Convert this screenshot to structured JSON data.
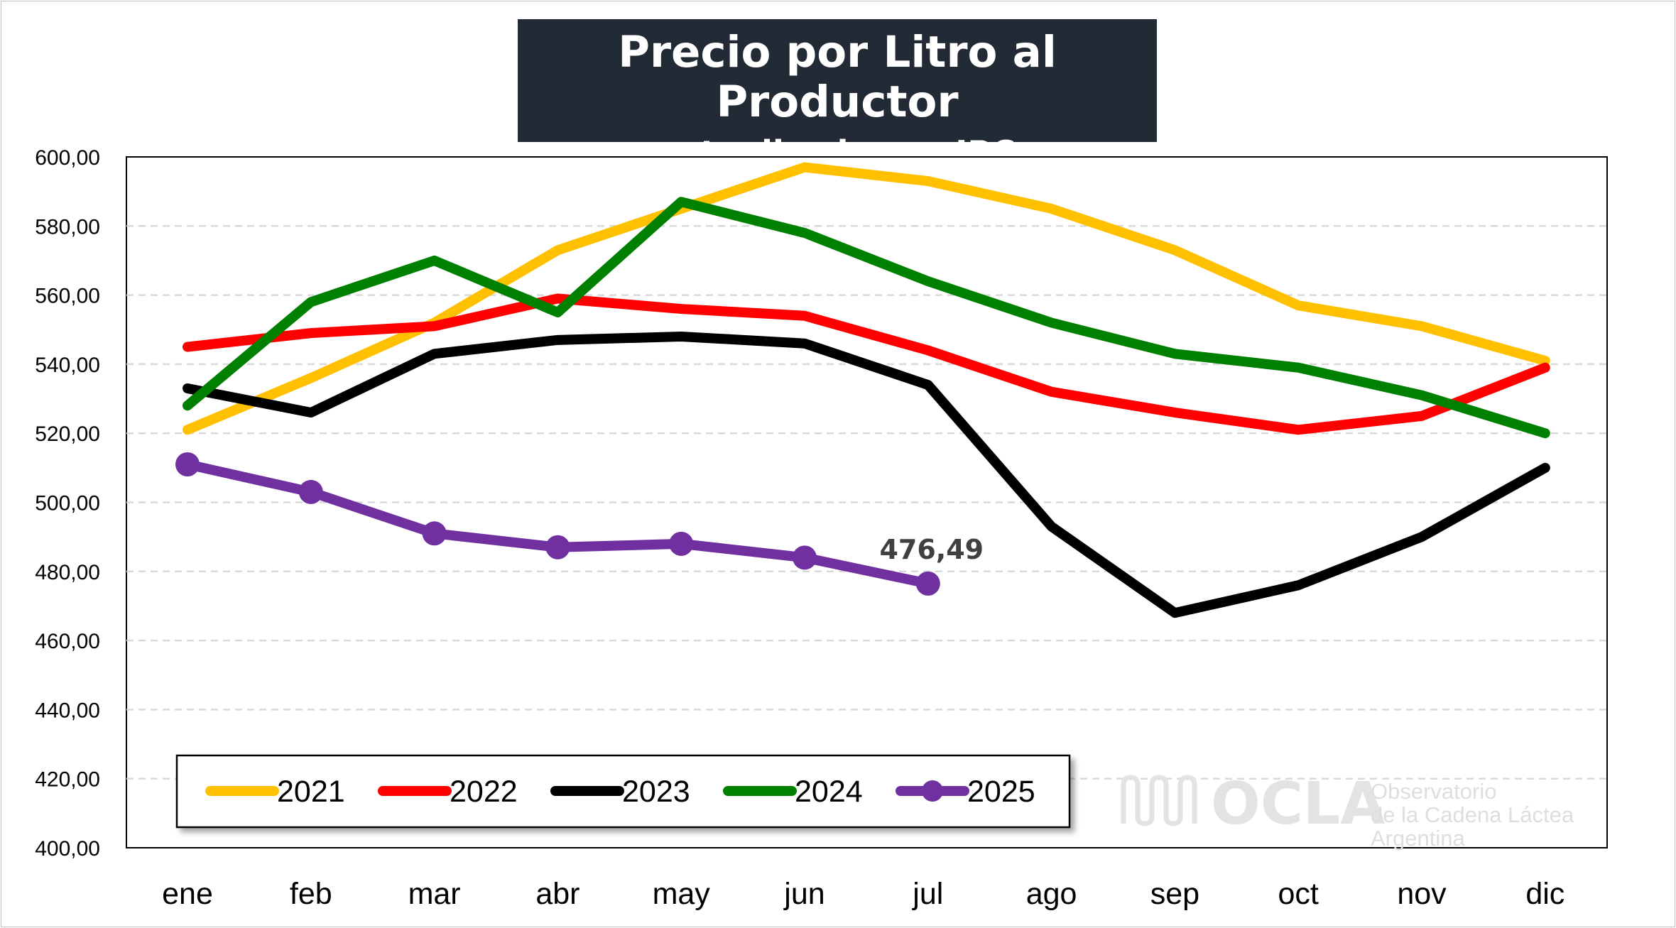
{
  "chart_data": {
    "type": "line",
    "title": "Precio por Litro al Productor",
    "subtitle": "- actualizado por IPC -",
    "xlabel": "",
    "ylabel": "",
    "categories": [
      "ene",
      "feb",
      "mar",
      "abr",
      "may",
      "jun",
      "jul",
      "ago",
      "sep",
      "oct",
      "nov",
      "dic"
    ],
    "ylim": [
      400,
      600
    ],
    "yticks": [
      "400,00",
      "420,00",
      "440,00",
      "460,00",
      "480,00",
      "500,00",
      "520,00",
      "540,00",
      "560,00",
      "580,00",
      "600,00"
    ],
    "grid": true,
    "legend_position": "bottom-left",
    "series": [
      {
        "name": "2021",
        "color": "#ffc000",
        "markers": false,
        "values": [
          521,
          536,
          552,
          573,
          585,
          597,
          593,
          585,
          573,
          557,
          551,
          541
        ]
      },
      {
        "name": "2022",
        "color": "#ff0000",
        "markers": false,
        "values": [
          545,
          549,
          551,
          559,
          556,
          554,
          544,
          532,
          526,
          521,
          525,
          539
        ]
      },
      {
        "name": "2023",
        "color": "#000000",
        "markers": false,
        "values": [
          533,
          526,
          543,
          547,
          548,
          546,
          534,
          493,
          468,
          476,
          490,
          510
        ]
      },
      {
        "name": "2024",
        "color": "#008000",
        "markers": false,
        "values": [
          528,
          558,
          570,
          555,
          587,
          578,
          564,
          552,
          543,
          539,
          531,
          520
        ]
      },
      {
        "name": "2025",
        "color": "#7030a0",
        "markers": true,
        "values": [
          511,
          503,
          491,
          487,
          488,
          484,
          476.49,
          null,
          null,
          null,
          null,
          null
        ]
      }
    ],
    "annotations": [
      {
        "series": "2025",
        "category": "jul",
        "text": "476,49"
      }
    ]
  },
  "watermark": {
    "brand": "OCLA",
    "line1": "Observatorio",
    "line2": "de la Cadena Láctea",
    "line3": "Argentina"
  }
}
